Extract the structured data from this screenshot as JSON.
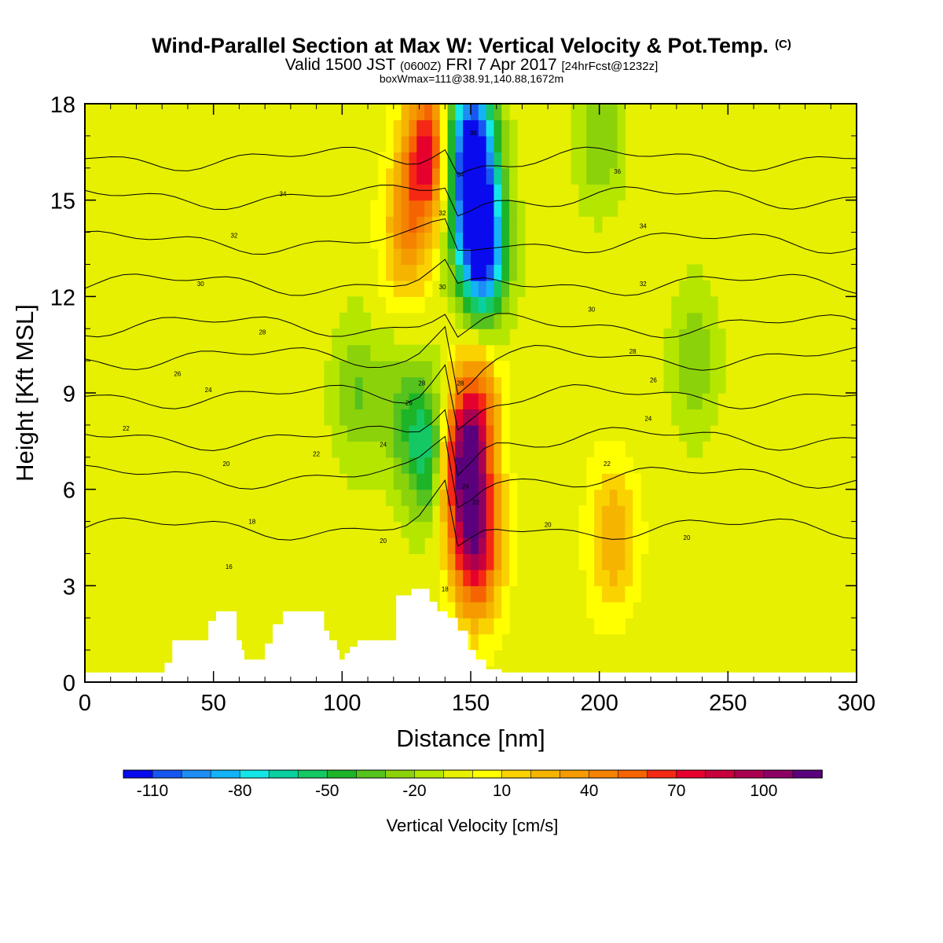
{
  "header": {
    "title": "Wind-Parallel Section at Max W: Vertical Velocity & Pot.Temp.",
    "title_tag": "(C)",
    "valid_prefix": "Valid 1500 JST",
    "valid_utc": "(0600Z)",
    "valid_date": "FRI 7 Apr 2017",
    "forecast_tag": "[24hrFcst@1232z]",
    "box_info": "boxWmax=111@38.91,140.88,1672m"
  },
  "chart_data": {
    "type": "heatmap",
    "xlabel": "Distance [nm]",
    "ylabel": "Height [Kft MSL]",
    "xlim": [
      0,
      300
    ],
    "ylim": [
      0,
      18
    ],
    "xticks": [
      0,
      50,
      100,
      150,
      200,
      250,
      300
    ],
    "yticks": [
      0,
      3,
      6,
      9,
      12,
      15,
      18
    ],
    "colorbar": {
      "label": "Vertical Velocity [cm/s]",
      "min": -120,
      "max": 120,
      "step": 10,
      "tick_labels": [
        "-110",
        "-80",
        "-50",
        "-20",
        "10",
        "40",
        "70",
        "100"
      ],
      "tick_values": [
        -110,
        -80,
        -50,
        -20,
        10,
        40,
        70,
        100
      ],
      "colors": [
        "#0a0aee",
        "#1756f0",
        "#1e8cf5",
        "#12b4f5",
        "#14e6e8",
        "#0ad0a0",
        "#14c864",
        "#1eb428",
        "#55c21e",
        "#8cd20a",
        "#b4e600",
        "#e6f000",
        "#ffff00",
        "#fad200",
        "#f5b400",
        "#f59b00",
        "#f58200",
        "#f56400",
        "#f52814",
        "#e6002d",
        "#c8003c",
        "#aa0050",
        "#8c0064",
        "#5a007d"
      ]
    },
    "velocity_features": [
      {
        "x": 150,
        "y": 16.8,
        "w": -110
      },
      {
        "x": 152,
        "y": 14.5,
        "w": -90
      },
      {
        "x": 155,
        "y": 13.0,
        "w": -70
      },
      {
        "x": 133,
        "y": 16.5,
        "w": 80
      },
      {
        "x": 125,
        "y": 14.0,
        "w": 40
      },
      {
        "x": 133,
        "y": 7.3,
        "w": -55
      },
      {
        "x": 121,
        "y": 8.5,
        "w": -20
      },
      {
        "x": 148,
        "y": 6.8,
        "w": 115
      },
      {
        "x": 152,
        "y": 4.2,
        "w": 90
      },
      {
        "x": 153,
        "y": 9.0,
        "w": 40
      },
      {
        "x": 205,
        "y": 4.5,
        "w": 35
      },
      {
        "x": 200,
        "y": 17.0,
        "w": -25
      },
      {
        "x": 237,
        "y": 10.0,
        "w": -25
      },
      {
        "x": 105,
        "y": 9.0,
        "w": -25
      },
      {
        "x": 20,
        "y": 15.5,
        "w": 5
      }
    ],
    "theta_contours": [
      {
        "label": "18",
        "y": 4.8
      },
      {
        "label": "20",
        "y": 6.4
      },
      {
        "label": "22",
        "y": 7.6
      },
      {
        "label": "24",
        "y": 8.9
      },
      {
        "label": "26",
        "y": 10.1
      },
      {
        "label": "28",
        "y": 11.1
      },
      {
        "label": "30",
        "y": 12.4
      },
      {
        "label": "32",
        "y": 13.7
      },
      {
        "label": "34",
        "y": 15.1
      },
      {
        "label": "36",
        "y": 16.3
      }
    ],
    "contour_labels": [
      {
        "text": "34",
        "x": 77,
        "y": 15.2
      },
      {
        "text": "32",
        "x": 58,
        "y": 13.9
      },
      {
        "text": "30",
        "x": 45,
        "y": 12.4
      },
      {
        "text": "28",
        "x": 69,
        "y": 10.9
      },
      {
        "text": "26",
        "x": 36,
        "y": 9.6
      },
      {
        "text": "24",
        "x": 48,
        "y": 9.1
      },
      {
        "text": "22",
        "x": 16,
        "y": 7.9
      },
      {
        "text": "22",
        "x": 90,
        "y": 7.1
      },
      {
        "text": "20",
        "x": 55,
        "y": 6.8
      },
      {
        "text": "18",
        "x": 65,
        "y": 5.0
      },
      {
        "text": "16",
        "x": 56,
        "y": 3.6
      },
      {
        "text": "20",
        "x": 116,
        "y": 4.4
      },
      {
        "text": "24",
        "x": 116,
        "y": 7.4
      },
      {
        "text": "26",
        "x": 126,
        "y": 8.7
      },
      {
        "text": "28",
        "x": 131,
        "y": 9.3
      },
      {
        "text": "30",
        "x": 139,
        "y": 12.3
      },
      {
        "text": "32",
        "x": 139,
        "y": 14.6
      },
      {
        "text": "34",
        "x": 146,
        "y": 15.8
      },
      {
        "text": "36",
        "x": 151,
        "y": 17.1
      },
      {
        "text": "28",
        "x": 146,
        "y": 9.3
      },
      {
        "text": "24",
        "x": 148,
        "y": 6.1
      },
      {
        "text": "22",
        "x": 152,
        "y": 5.6
      },
      {
        "text": "18",
        "x": 140,
        "y": 2.9
      },
      {
        "text": "20",
        "x": 180,
        "y": 4.9
      },
      {
        "text": "22",
        "x": 203,
        "y": 6.8
      },
      {
        "text": "24",
        "x": 219,
        "y": 8.2
      },
      {
        "text": "26",
        "x": 221,
        "y": 9.4
      },
      {
        "text": "28",
        "x": 213,
        "y": 10.3
      },
      {
        "text": "30",
        "x": 197,
        "y": 11.6
      },
      {
        "text": "32",
        "x": 217,
        "y": 12.4
      },
      {
        "text": "34",
        "x": 217,
        "y": 14.2
      },
      {
        "text": "36",
        "x": 207,
        "y": 15.9
      },
      {
        "text": "20",
        "x": 234,
        "y": 4.5
      }
    ],
    "terrain": {
      "x": [
        0,
        28,
        31,
        34,
        45,
        48,
        51,
        57,
        59,
        61,
        62,
        67,
        70,
        73,
        77,
        87,
        93,
        95,
        98,
        99,
        101,
        103,
        106,
        117,
        121,
        127,
        131,
        134,
        137,
        141,
        145,
        149,
        152,
        156,
        162,
        300
      ],
      "height": [
        0.3,
        0.3,
        0.6,
        1.3,
        1.3,
        1.9,
        2.2,
        2.2,
        1.3,
        1.0,
        0.7,
        0.7,
        1.2,
        1.8,
        2.2,
        2.2,
        1.6,
        1.3,
        1.0,
        0.7,
        0.9,
        1.1,
        1.3,
        1.3,
        2.7,
        2.9,
        2.9,
        2.5,
        2.2,
        2.0,
        1.6,
        1.0,
        0.7,
        0.4,
        0.3,
        0.3
      ]
    }
  }
}
